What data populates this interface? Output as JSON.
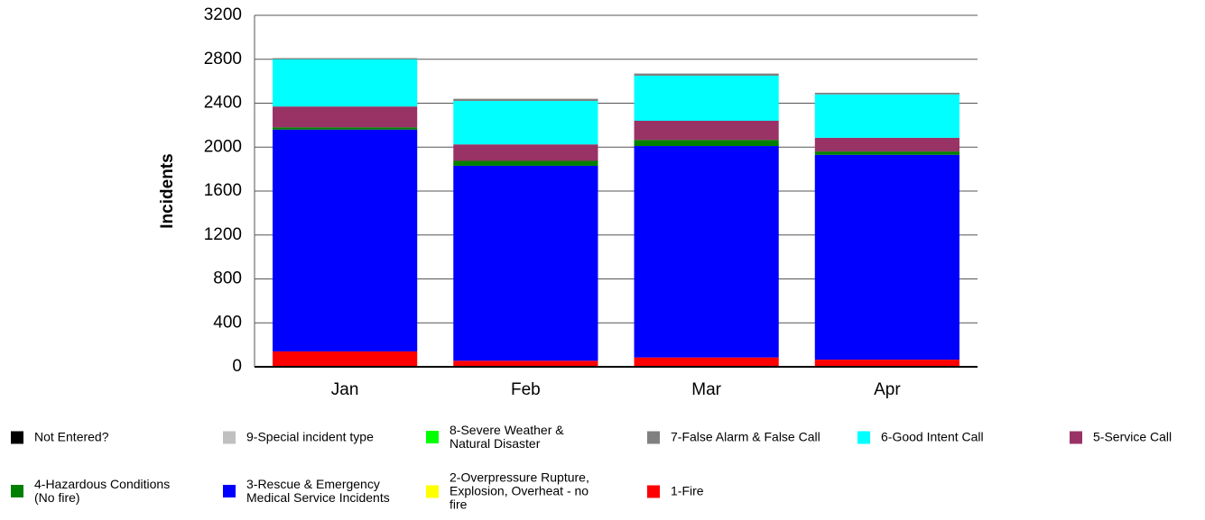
{
  "chart_data": {
    "type": "stacked_bar",
    "y_label": "Incidents",
    "categories": [
      "Jan",
      "Feb",
      "Mar",
      "Apr"
    ],
    "ylim": [
      0,
      3200
    ],
    "yticks": [
      0,
      400,
      800,
      1200,
      1600,
      2000,
      2400,
      2800,
      3200
    ],
    "grid": true,
    "legend": "bottom",
    "series": [
      {
        "name": "Not Entered?",
        "color": "#000000",
        "values": [
          0,
          0,
          0,
          0
        ]
      },
      {
        "name": "9-Special incident type",
        "color": "#c0c0c0",
        "values": [
          0,
          0,
          0,
          0
        ]
      },
      {
        "name": "8-Severe Weather & Natural Disaster",
        "color": "#00ff00",
        "values": [
          0,
          0,
          0,
          0
        ]
      },
      {
        "name": "7-False Alarm & False Call",
        "color": "#808080",
        "values": [
          10,
          20,
          20,
          15
        ]
      },
      {
        "name": "6-Good Intent Call",
        "color": "#00ffff",
        "values": [
          430,
          395,
          410,
          395
        ]
      },
      {
        "name": "5-Service Call",
        "color": "#993366",
        "values": [
          190,
          150,
          175,
          125
        ]
      },
      {
        "name": "4-Hazardous Conditions (No fire)",
        "color": "#008000",
        "values": [
          20,
          45,
          55,
          30
        ]
      },
      {
        "name": "3-Rescue & Emergency Medical Service Incidents",
        "color": "#0000ff",
        "values": [
          2020,
          1775,
          1925,
          1865
        ]
      },
      {
        "name": "2-Overpressure Rupture, Explosion, Overheat - no fire",
        "color": "#ffff00",
        "values": [
          0,
          0,
          0,
          0
        ]
      },
      {
        "name": "1-Fire",
        "color": "#ff0000",
        "values": [
          140,
          55,
          85,
          65
        ]
      }
    ]
  }
}
